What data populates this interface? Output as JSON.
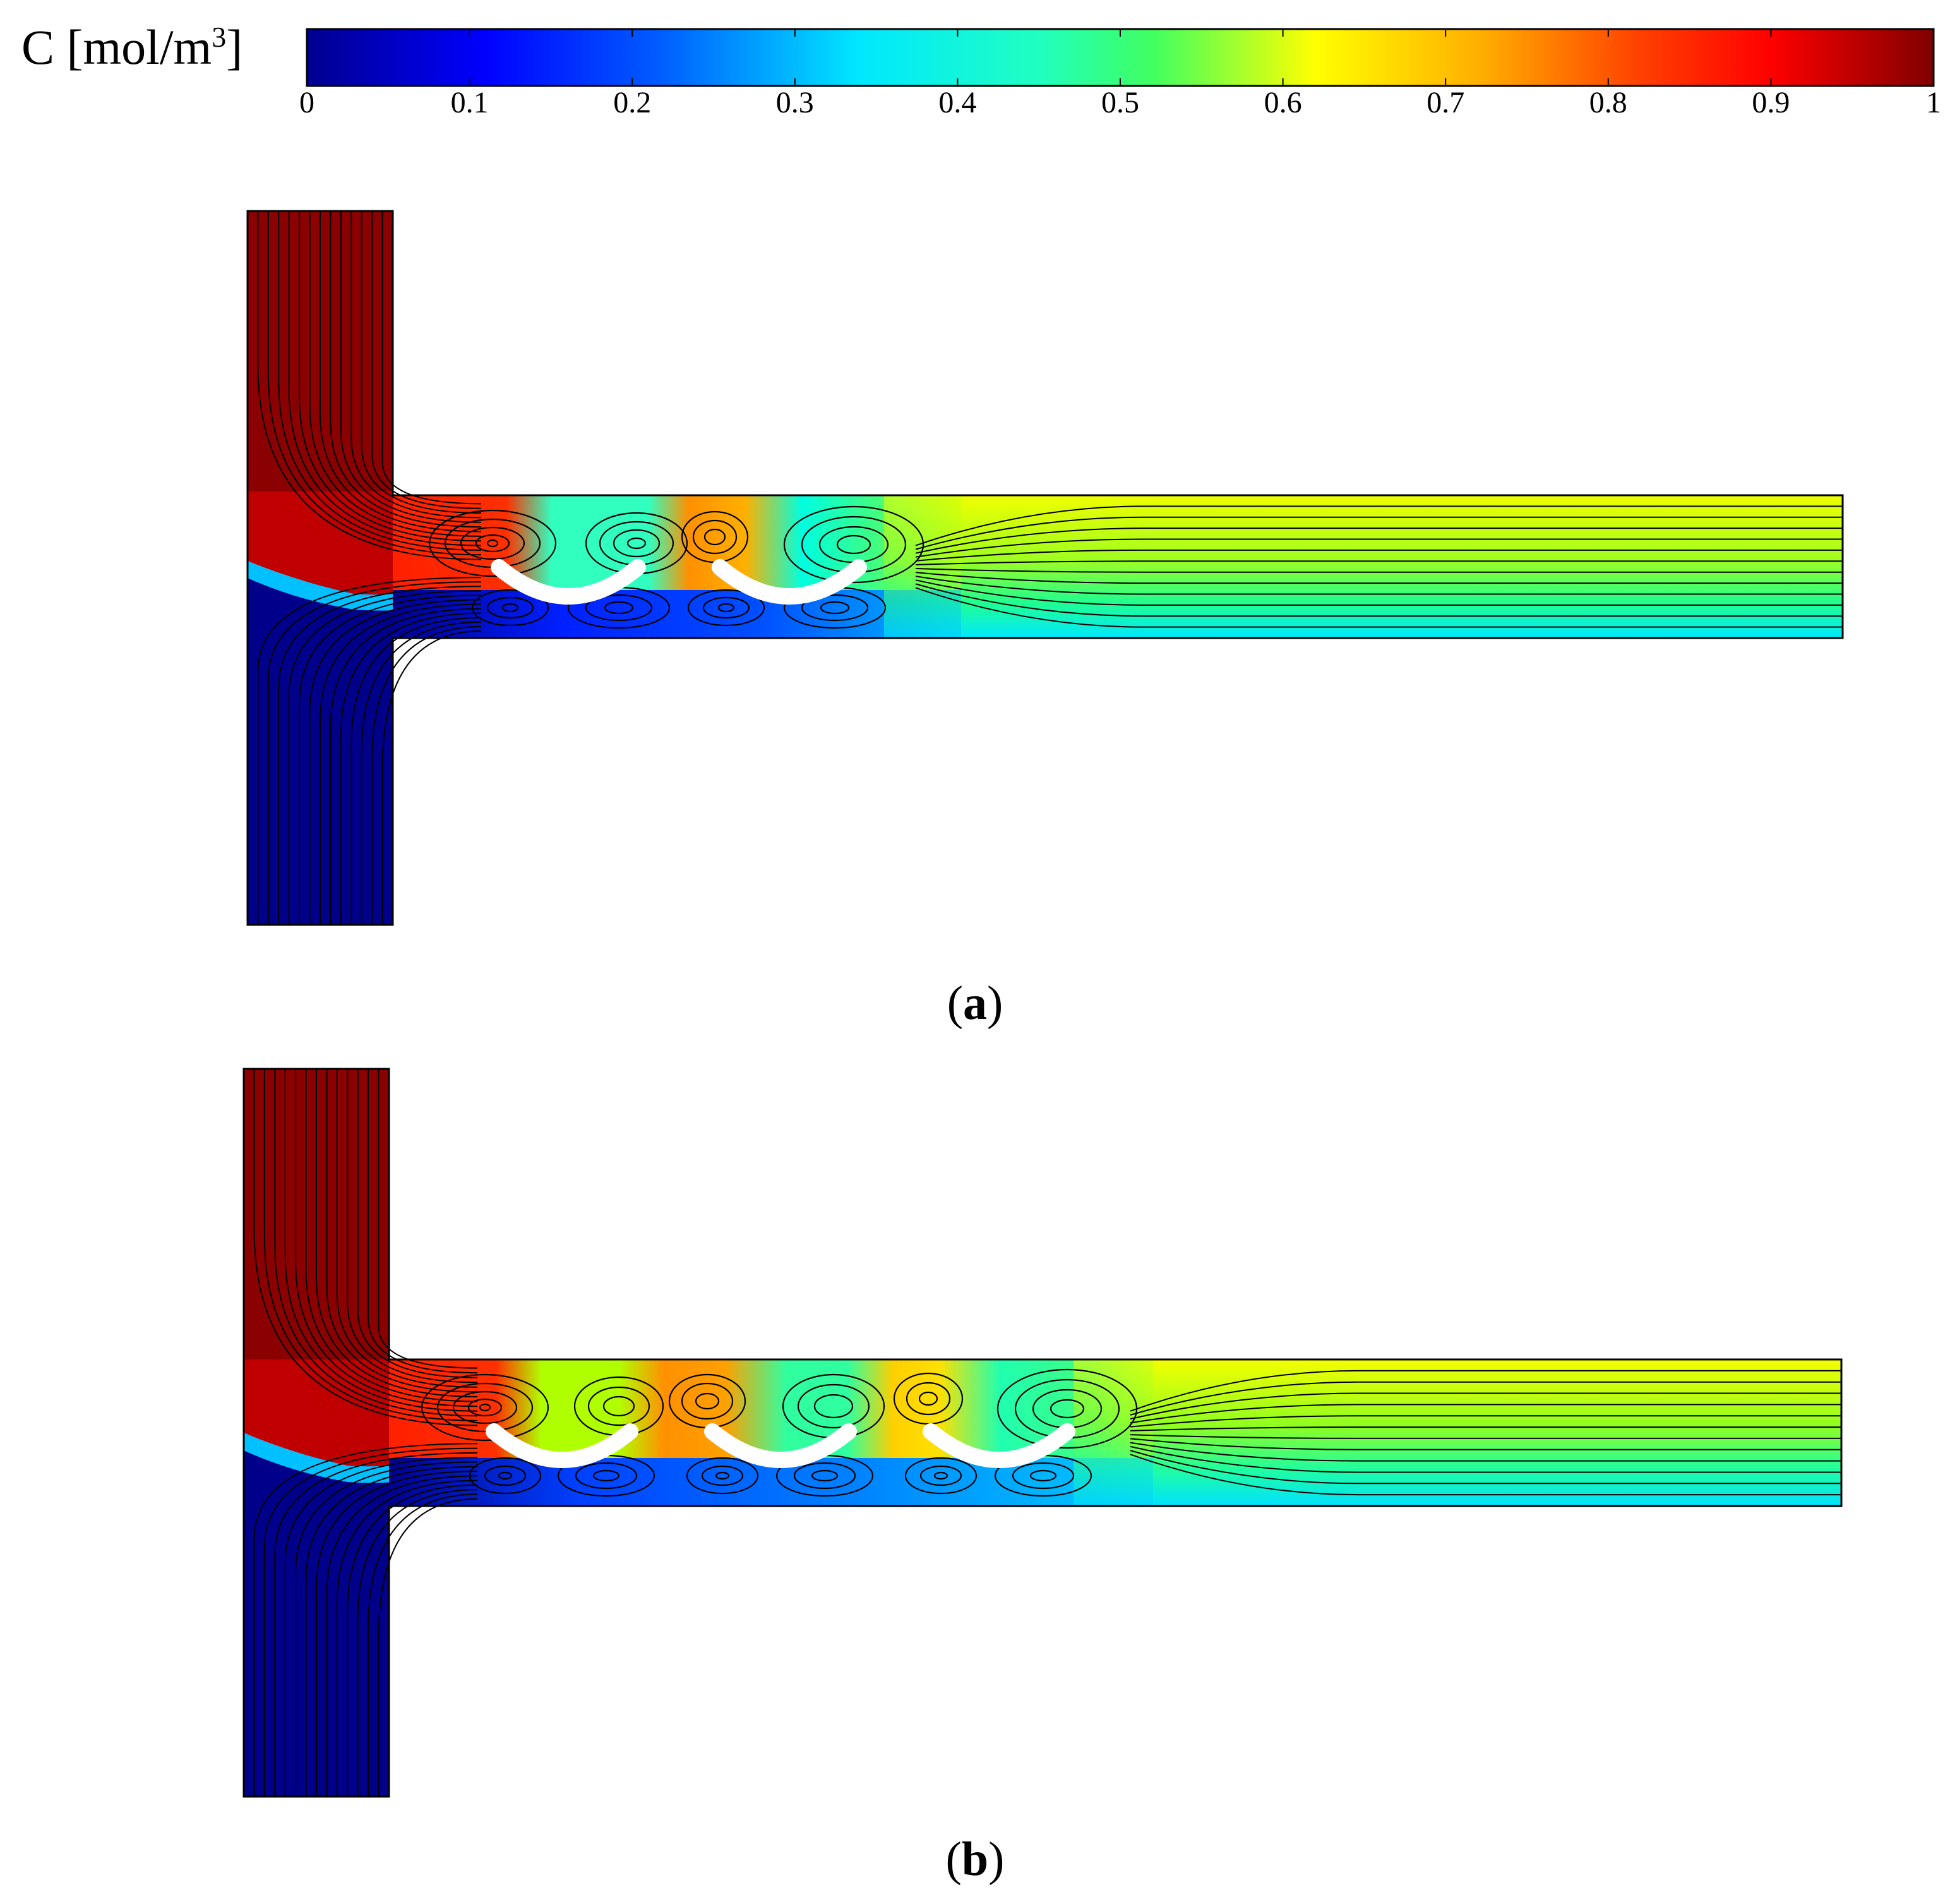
{
  "colorbar": {
    "label_prefix": "C [mol/m",
    "label_exponent": "3",
    "label_suffix": "]",
    "ticks": [
      "0",
      "0.1",
      "0.2",
      "0.3",
      "0.4",
      "0.5",
      "0.6",
      "0.7",
      "0.8",
      "0.9",
      "1"
    ],
    "range": [
      0,
      1
    ],
    "colormap": [
      "#00008f",
      "#0000ff",
      "#0080ff",
      "#00ffff",
      "#20ff90",
      "#90ff10",
      "#ffff00",
      "#ffa000",
      "#ff3000",
      "#ff0000",
      "#800000"
    ]
  },
  "panels": [
    {
      "id": "a",
      "caption": "a",
      "baffle_count": 2,
      "cavity_concentrations": [
        0.9,
        0.45,
        0.75,
        0.4
      ],
      "outlet_top_concentration": 0.62,
      "outlet_bottom_concentration": 0.38
    },
    {
      "id": "b",
      "caption": "b",
      "baffle_count": 3,
      "cavity_concentrations": [
        0.9,
        0.58,
        0.72,
        0.45,
        0.66,
        0.45
      ],
      "outlet_top_concentration": 0.62,
      "outlet_bottom_concentration": 0.35
    }
  ],
  "colors": {
    "streamline": "#000000",
    "baffle": "#ffffff",
    "high": "#8b0000",
    "low": "#00008b"
  }
}
